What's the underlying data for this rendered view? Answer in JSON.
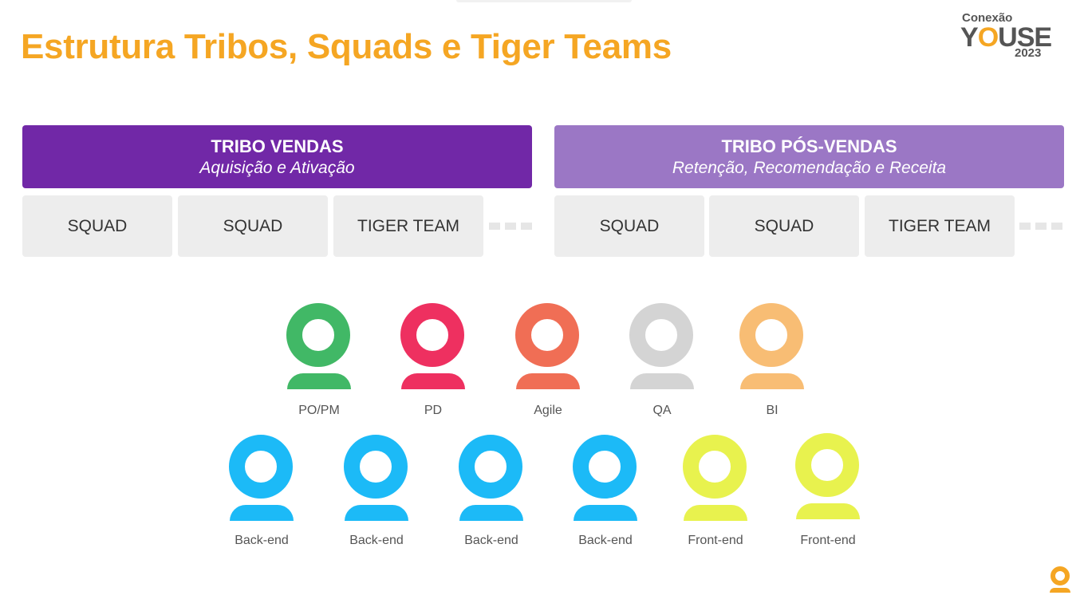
{
  "title": "Estrutura Tribos, Squads e Tiger Teams",
  "logo": {
    "line1": "Conexão",
    "word_pre": "Y",
    "word_o": "O",
    "word_post": "USE",
    "year": "2023"
  },
  "tribes": [
    {
      "name": "TRIBO VENDAS",
      "subtitle": "Aquisição e Ativação",
      "color": "#7128A7",
      "teams": [
        "SQUAD",
        "SQUAD",
        "TIGER TEAM"
      ]
    },
    {
      "name": "TRIBO PÓS-VENDAS",
      "subtitle": "Retenção, Recomendação e Receita",
      "color": "#9B77C5",
      "teams": [
        "SQUAD",
        "SQUAD",
        "TIGER TEAM"
      ]
    }
  ],
  "roles_row1": [
    {
      "label": "PO/PM",
      "color": "#41B866"
    },
    {
      "label": "PD",
      "color": "#EE3060"
    },
    {
      "label": "Agile",
      "color": "#F06E55"
    },
    {
      "label": "QA",
      "color": "#D4D4D4"
    },
    {
      "label": "BI",
      "color": "#F8BD74"
    }
  ],
  "roles_row2": [
    {
      "label": "Back-end",
      "color": "#1CBAF7"
    },
    {
      "label": "Back-end",
      "color": "#1CBAF7"
    },
    {
      "label": "Back-end",
      "color": "#1CBAF7"
    },
    {
      "label": "Back-end",
      "color": "#1CBAF7"
    },
    {
      "label": "Front-end",
      "color": "#E8F24E"
    },
    {
      "label": "Front-end",
      "color": "#E8F24E"
    }
  ],
  "accent": "#F5A623"
}
